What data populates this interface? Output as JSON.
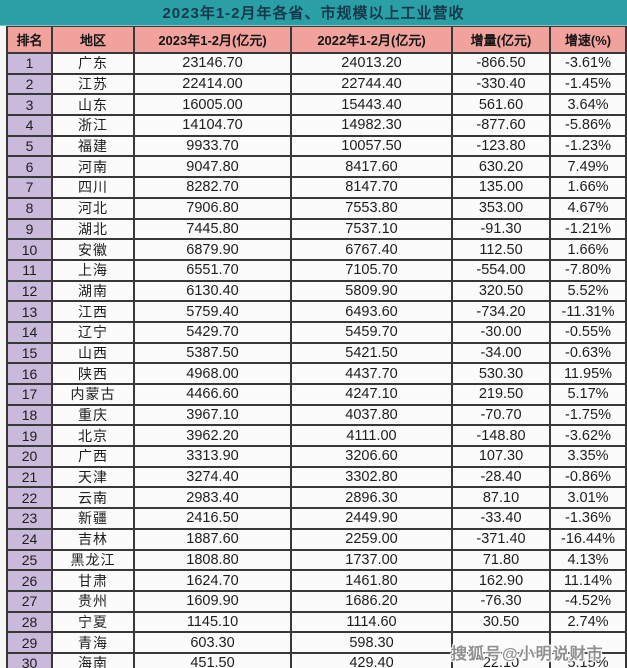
{
  "title": "2023年1-2月年各省、市规模以上工业营收",
  "chart_data": {
    "type": "table",
    "title": "2023年1-2月年各省、市规模以上工业营收",
    "columns": [
      "排名",
      "地区",
      "2023年1-2月(亿元)",
      "2022年1-2月(亿元)",
      "增量(亿元)",
      "增速(%)"
    ],
    "rows": [
      [
        "1",
        "广东",
        "23146.70",
        "24013.20",
        "-866.50",
        "-3.61%"
      ],
      [
        "2",
        "江苏",
        "22414.00",
        "22744.40",
        "-330.40",
        "-1.45%"
      ],
      [
        "3",
        "山东",
        "16005.00",
        "15443.40",
        "561.60",
        "3.64%"
      ],
      [
        "4",
        "浙江",
        "14104.70",
        "14982.30",
        "-877.60",
        "-5.86%"
      ],
      [
        "5",
        "福建",
        "9933.70",
        "10057.50",
        "-123.80",
        "-1.23%"
      ],
      [
        "6",
        "河南",
        "9047.80",
        "8417.60",
        "630.20",
        "7.49%"
      ],
      [
        "7",
        "四川",
        "8282.70",
        "8147.70",
        "135.00",
        "1.66%"
      ],
      [
        "8",
        "河北",
        "7906.80",
        "7553.80",
        "353.00",
        "4.67%"
      ],
      [
        "9",
        "湖北",
        "7445.80",
        "7537.10",
        "-91.30",
        "-1.21%"
      ],
      [
        "10",
        "安徽",
        "6879.90",
        "6767.40",
        "112.50",
        "1.66%"
      ],
      [
        "11",
        "上海",
        "6551.70",
        "7105.70",
        "-554.00",
        "-7.80%"
      ],
      [
        "12",
        "湖南",
        "6130.40",
        "5809.90",
        "320.50",
        "5.52%"
      ],
      [
        "13",
        "江西",
        "5759.40",
        "6493.60",
        "-734.20",
        "-11.31%"
      ],
      [
        "14",
        "辽宁",
        "5429.70",
        "5459.70",
        "-30.00",
        "-0.55%"
      ],
      [
        "15",
        "山西",
        "5387.50",
        "5421.50",
        "-34.00",
        "-0.63%"
      ],
      [
        "16",
        "陕西",
        "4968.00",
        "4437.70",
        "530.30",
        "11.95%"
      ],
      [
        "17",
        "内蒙古",
        "4466.60",
        "4247.10",
        "219.50",
        "5.17%"
      ],
      [
        "18",
        "重庆",
        "3967.10",
        "4037.80",
        "-70.70",
        "-1.75%"
      ],
      [
        "19",
        "北京",
        "3962.20",
        "4111.00",
        "-148.80",
        "-3.62%"
      ],
      [
        "20",
        "广西",
        "3313.90",
        "3206.60",
        "107.30",
        "3.35%"
      ],
      [
        "21",
        "天津",
        "3274.40",
        "3302.80",
        "-28.40",
        "-0.86%"
      ],
      [
        "22",
        "云南",
        "2983.40",
        "2896.30",
        "87.10",
        "3.01%"
      ],
      [
        "23",
        "新疆",
        "2416.50",
        "2449.90",
        "-33.40",
        "-1.36%"
      ],
      [
        "24",
        "吉林",
        "1887.60",
        "2259.00",
        "-371.40",
        "-16.44%"
      ],
      [
        "25",
        "黑龙江",
        "1808.80",
        "1737.00",
        "71.80",
        "4.13%"
      ],
      [
        "26",
        "甘肃",
        "1624.70",
        "1461.80",
        "162.90",
        "11.14%"
      ],
      [
        "27",
        "贵州",
        "1609.90",
        "1686.20",
        "-76.30",
        "-4.52%"
      ],
      [
        "28",
        "宁夏",
        "1145.10",
        "1114.60",
        "30.50",
        "2.74%"
      ],
      [
        "29",
        "青海",
        "603.30",
        "598.30",
        "",
        ""
      ],
      [
        "30",
        "海南",
        "451.50",
        "429.40",
        "22.10",
        "5.15%"
      ]
    ]
  },
  "watermark": "搜狐号@小明说财市",
  "colors": {
    "title_bg": "#2aa0a6",
    "title_text": "#15394c",
    "header_bg": "#f1a29d",
    "rank_col_bg": "#c9b9db",
    "cell_bg": "#fbfbfb",
    "grid_line": "#383838",
    "watermark": "#8f8f8f"
  }
}
